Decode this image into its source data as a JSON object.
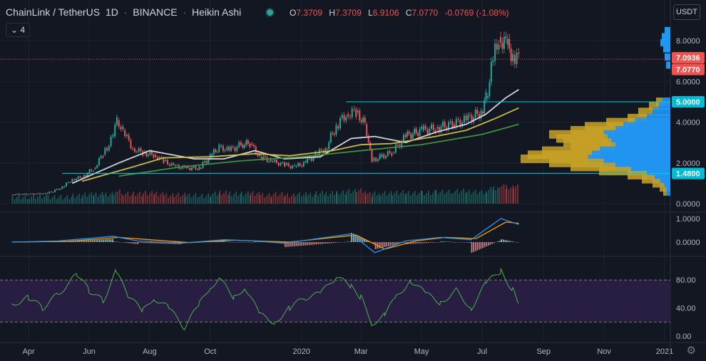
{
  "header": {
    "symbol": "ChainLink / TetherUS",
    "interval": "1D",
    "exchange": "BINANCE",
    "chart_style": "Heikin Ashi",
    "toggle_label": "4",
    "open_key": "O",
    "open": "7.3709",
    "high_key": "H",
    "high": "7.3709",
    "low_key": "L",
    "low": "6.9106",
    "close_key": "C",
    "close": "7.0770",
    "change": "-0.0769 (-1.08%)"
  },
  "currency_button": "USDT",
  "colors": {
    "background": "#131722",
    "grid": "#1e222d",
    "up": "#26a69a",
    "down": "#ef5350",
    "ma_white": "#d1d4dc",
    "ma_yellow": "#c9b94a",
    "ma_green": "#3f8f3f",
    "level_line": "#00d0e0",
    "vp_blue": "#2196f3",
    "vp_gold": "#c8a227",
    "rsi_line": "#4caf50",
    "rsi_band": "#2a1f45",
    "macd": "#2196f3",
    "signal": "#ff9800"
  },
  "chart_data": [
    {
      "type": "candlestick",
      "title": "",
      "xticks": [
        "Apr",
        "Jun",
        "Aug",
        "Oct",
        "2020",
        "Mar",
        "May",
        "Jul",
        "Sep",
        "Nov",
        "2021"
      ],
      "yticks": [
        "8.0000",
        "6.0000",
        "4.0000",
        "2.0000",
        "0.0000"
      ],
      "ytick_values": [
        8,
        6,
        4,
        2,
        0
      ],
      "price_labels": [
        {
          "text": "7.0936",
          "value": 7.0936,
          "color": "#ef5350"
        },
        {
          "text": "7.0770",
          "value": 7.077,
          "color": "#ef5350"
        },
        {
          "text": "5.0000",
          "value": 5.0,
          "color": "#00bcd4"
        },
        {
          "text": "1.4800",
          "value": 1.48,
          "color": "#00bcd4"
        }
      ],
      "horizontal_levels": [
        5.0,
        1.48
      ],
      "close_series": [
        [
          "2019-03-15",
          0.45
        ],
        [
          "2019-04-01",
          0.47
        ],
        [
          "2019-04-20",
          0.5
        ],
        [
          "2019-05-05",
          0.8
        ],
        [
          "2019-05-15",
          1.2
        ],
        [
          "2019-05-25",
          1.3
        ],
        [
          "2019-06-05",
          1.7
        ],
        [
          "2019-06-15",
          2.4
        ],
        [
          "2019-06-25",
          3.3
        ],
        [
          "2019-06-29",
          4.1
        ],
        [
          "2019-07-05",
          3.6
        ],
        [
          "2019-07-15",
          2.7
        ],
        [
          "2019-07-25",
          2.5
        ],
        [
          "2019-08-05",
          2.4
        ],
        [
          "2019-08-15",
          2.1
        ],
        [
          "2019-08-25",
          1.85
        ],
        [
          "2019-09-05",
          1.75
        ],
        [
          "2019-09-20",
          1.75
        ],
        [
          "2019-10-01",
          2.3
        ],
        [
          "2019-10-10",
          2.8
        ],
        [
          "2019-10-20",
          2.6
        ],
        [
          "2019-11-01",
          2.9
        ],
        [
          "2019-11-10",
          2.95
        ],
        [
          "2019-11-20",
          2.3
        ],
        [
          "2019-12-01",
          2.1
        ],
        [
          "2019-12-15",
          1.9
        ],
        [
          "2019-12-25",
          1.8
        ],
        [
          "2020-01-05",
          2.0
        ],
        [
          "2020-01-15",
          2.4
        ],
        [
          "2020-01-25",
          2.7
        ],
        [
          "2020-02-05",
          3.8
        ],
        [
          "2020-02-15",
          4.4
        ],
        [
          "2020-02-25",
          4.5
        ],
        [
          "2020-03-05",
          3.9
        ],
        [
          "2020-03-12",
          2.1
        ],
        [
          "2020-03-20",
          2.3
        ],
        [
          "2020-04-01",
          2.5
        ],
        [
          "2020-04-15",
          3.3
        ],
        [
          "2020-05-01",
          3.6
        ],
        [
          "2020-05-15",
          3.7
        ],
        [
          "2020-06-01",
          3.9
        ],
        [
          "2020-06-15",
          4.1
        ],
        [
          "2020-06-30",
          4.5
        ],
        [
          "2020-07-05",
          5.2
        ],
        [
          "2020-07-12",
          7.0
        ],
        [
          "2020-07-18",
          8.2
        ],
        [
          "2020-07-25",
          7.8
        ],
        [
          "2020-08-01",
          7.3
        ],
        [
          "2020-08-07",
          7.07
        ]
      ],
      "moving_averages": [
        {
          "color": "#d1d4dc",
          "points": [
            [
              "2019-05-15",
              1.0
            ],
            [
              "2019-07-01",
              2.0
            ],
            [
              "2019-08-01",
              2.6
            ],
            [
              "2019-09-15",
              2.2
            ],
            [
              "2019-10-15",
              2.2
            ],
            [
              "2019-11-15",
              2.6
            ],
            [
              "2019-12-15",
              2.2
            ],
            [
              "2020-01-20",
              2.3
            ],
            [
              "2020-02-20",
              3.2
            ],
            [
              "2020-03-15",
              3.3
            ],
            [
              "2020-04-15",
              3.0
            ],
            [
              "2020-05-15",
              3.5
            ],
            [
              "2020-06-15",
              3.9
            ],
            [
              "2020-07-05",
              4.4
            ],
            [
              "2020-07-25",
              5.2
            ],
            [
              "2020-08-07",
              5.6
            ]
          ]
        },
        {
          "color": "#c9b94a",
          "points": [
            [
              "2019-05-25",
              1.1
            ],
            [
              "2019-07-15",
              1.8
            ],
            [
              "2019-08-15",
              2.25
            ],
            [
              "2019-10-01",
              2.3
            ],
            [
              "2019-11-15",
              2.45
            ],
            [
              "2019-12-20",
              2.35
            ],
            [
              "2020-02-01",
              2.6
            ],
            [
              "2020-03-01",
              2.9
            ],
            [
              "2020-04-01",
              2.95
            ],
            [
              "2020-05-15",
              3.3
            ],
            [
              "2020-06-15",
              3.6
            ],
            [
              "2020-07-15",
              4.2
            ],
            [
              "2020-08-07",
              4.7
            ]
          ]
        },
        {
          "color": "#3f8f3f",
          "points": [
            [
              "2019-07-01",
              1.35
            ],
            [
              "2019-09-01",
              1.8
            ],
            [
              "2019-11-01",
              2.1
            ],
            [
              "2020-01-01",
              2.3
            ],
            [
              "2020-03-01",
              2.6
            ],
            [
              "2020-05-01",
              2.9
            ],
            [
              "2020-07-01",
              3.4
            ],
            [
              "2020-08-07",
              3.9
            ]
          ]
        }
      ]
    },
    {
      "type": "bar",
      "title": "",
      "series_name": "",
      "yticks": [
        "1.0000",
        "0.0000"
      ],
      "ytick_values": [
        1.0,
        0.0
      ],
      "macd_points": [
        [
          "2019-03-15",
          0
        ],
        [
          "2019-05-01",
          0.05
        ],
        [
          "2019-06-25",
          0.25
        ],
        [
          "2019-07-20",
          0.05
        ],
        [
          "2019-09-01",
          -0.05
        ],
        [
          "2019-10-15",
          0.1
        ],
        [
          "2019-11-15",
          0.05
        ],
        [
          "2019-12-15",
          -0.05
        ],
        [
          "2020-02-20",
          0.35
        ],
        [
          "2020-03-15",
          -0.45
        ],
        [
          "2020-04-15",
          0.05
        ],
        [
          "2020-05-20",
          0.2
        ],
        [
          "2020-06-20",
          0.1
        ],
        [
          "2020-07-20",
          1.0
        ],
        [
          "2020-08-07",
          0.75
        ]
      ],
      "signal_points": [
        [
          "2019-03-15",
          0
        ],
        [
          "2019-05-10",
          0.03
        ],
        [
          "2019-07-01",
          0.2
        ],
        [
          "2019-08-01",
          0.1
        ],
        [
          "2019-09-10",
          -0.02
        ],
        [
          "2019-10-25",
          0.08
        ],
        [
          "2019-12-20",
          0
        ],
        [
          "2020-02-25",
          0.3
        ],
        [
          "2020-03-25",
          -0.3
        ],
        [
          "2020-04-25",
          0.05
        ],
        [
          "2020-05-25",
          0.2
        ],
        [
          "2020-06-25",
          0.15
        ],
        [
          "2020-07-25",
          0.85
        ],
        [
          "2020-08-07",
          0.8
        ]
      ]
    },
    {
      "type": "line",
      "title": "",
      "series_name": "",
      "yticks": [
        "80.00",
        "40.00",
        "0.00"
      ],
      "ytick_values": [
        80,
        40,
        0
      ],
      "ylim": [
        0,
        100
      ],
      "band": [
        20,
        80
      ],
      "points": [
        [
          "2019-03-15",
          45
        ],
        [
          "2019-04-01",
          55
        ],
        [
          "2019-04-15",
          40
        ],
        [
          "2019-05-01",
          60
        ],
        [
          "2019-05-20",
          88
        ],
        [
          "2019-06-01",
          65
        ],
        [
          "2019-06-15",
          50
        ],
        [
          "2019-06-28",
          92
        ],
        [
          "2019-07-10",
          58
        ],
        [
          "2019-07-25",
          35
        ],
        [
          "2019-08-05",
          55
        ],
        [
          "2019-08-20",
          40
        ],
        [
          "2019-09-05",
          12
        ],
        [
          "2019-09-20",
          45
        ],
        [
          "2019-10-01",
          70
        ],
        [
          "2019-10-10",
          82
        ],
        [
          "2019-10-25",
          55
        ],
        [
          "2019-11-05",
          70
        ],
        [
          "2019-11-20",
          30
        ],
        [
          "2019-12-05",
          20
        ],
        [
          "2019-12-20",
          40
        ],
        [
          "2020-01-05",
          55
        ],
        [
          "2020-01-20",
          60
        ],
        [
          "2020-02-05",
          85
        ],
        [
          "2020-02-20",
          70
        ],
        [
          "2020-03-01",
          55
        ],
        [
          "2020-03-12",
          18
        ],
        [
          "2020-03-25",
          30
        ],
        [
          "2020-04-05",
          55
        ],
        [
          "2020-04-20",
          80
        ],
        [
          "2020-05-05",
          60
        ],
        [
          "2020-05-20",
          48
        ],
        [
          "2020-06-05",
          65
        ],
        [
          "2020-06-20",
          40
        ],
        [
          "2020-07-05",
          75
        ],
        [
          "2020-07-20",
          93
        ],
        [
          "2020-08-01",
          65
        ],
        [
          "2020-08-07",
          45
        ]
      ]
    }
  ]
}
